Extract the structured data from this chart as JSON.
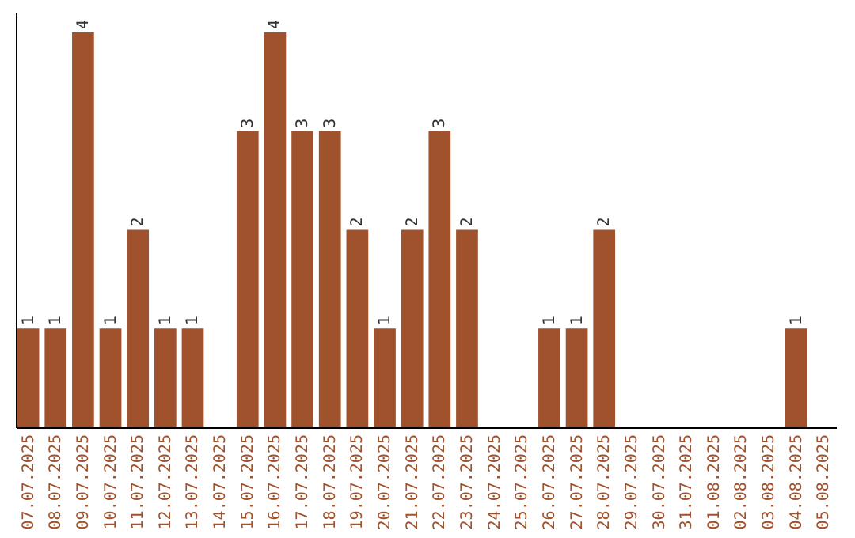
{
  "chart_data": {
    "type": "bar",
    "categories": [
      "07.07.2025",
      "08.07.2025",
      "09.07.2025",
      "10.07.2025",
      "11.07.2025",
      "12.07.2025",
      "13.07.2025",
      "14.07.2025",
      "15.07.2025",
      "16.07.2025",
      "17.07.2025",
      "18.07.2025",
      "19.07.2025",
      "20.07.2025",
      "21.07.2025",
      "22.07.2025",
      "23.07.2025",
      "24.07.2025",
      "25.07.2025",
      "26.07.2025",
      "27.07.2025",
      "28.07.2025",
      "29.07.2025",
      "30.07.2025",
      "31.07.2025",
      "01.08.2025",
      "02.08.2025",
      "03.08.2025",
      "04.08.2025",
      "05.08.2025"
    ],
    "values": [
      1,
      1,
      4,
      1,
      2,
      1,
      1,
      0,
      3,
      4,
      3,
      3,
      2,
      1,
      2,
      3,
      2,
      0,
      0,
      1,
      1,
      2,
      0,
      0,
      0,
      0,
      0,
      0,
      1,
      0
    ],
    "value_labels": [
      "1",
      "1",
      "4",
      "1",
      "2",
      "1",
      "1",
      null,
      "3",
      "4",
      "3",
      "3",
      "2",
      "1",
      "2",
      "3",
      "2",
      null,
      null,
      "1",
      "1",
      "2",
      null,
      null,
      null,
      null,
      null,
      null,
      "1",
      null
    ],
    "color": "#a0522d",
    "ylim": [
      0,
      4.2
    ],
    "tick_labels": "x"
  }
}
